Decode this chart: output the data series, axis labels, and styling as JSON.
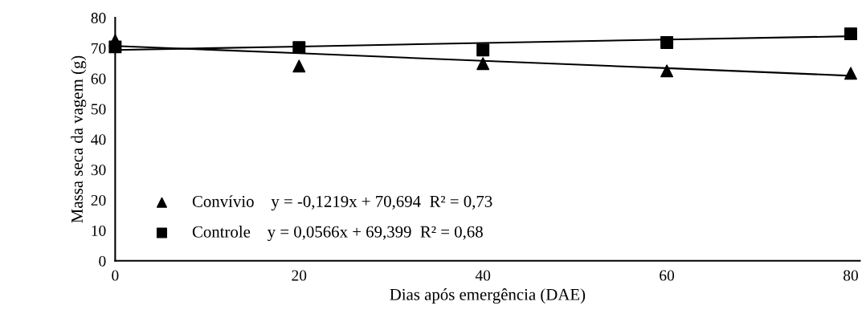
{
  "chart_data": {
    "type": "scatter",
    "xlabel": "Dias após emergência (DAE)",
    "ylabel": "Massa seca da vagem (g)",
    "x": [
      0,
      20,
      40,
      60,
      80
    ],
    "series": [
      {
        "name": "Convívio    y = -0,1219x + 70,694  R² = 0,73",
        "color": "#000000",
        "marker": "triangle",
        "values": [
          72.5,
          64.1,
          64.9,
          62.5,
          61.7
        ]
      },
      {
        "name": "Controle    y = 0,0566x + 69,399  R² = 0,68",
        "color": "#000000",
        "marker": "square",
        "values": [
          70.4,
          70.2,
          69.4,
          71.8,
          74.7
        ]
      },
      {
        "type": "line",
        "color": "#000000",
        "values": [
          70.7,
          68.3,
          65.8,
          63.4,
          60.9
        ]
      },
      {
        "type": "line",
        "color": "#000000",
        "values": [
          69.4,
          70.5,
          71.7,
          72.8,
          73.9
        ]
      }
    ],
    "xlim": [
      0,
      81
    ],
    "ylim": [
      0,
      80
    ],
    "xticks": [
      0,
      20,
      40,
      60,
      80
    ],
    "yticks": [
      0,
      10,
      20,
      30,
      40,
      50,
      60,
      70,
      80
    ],
    "grid": false,
    "legend": "bottom left"
  }
}
